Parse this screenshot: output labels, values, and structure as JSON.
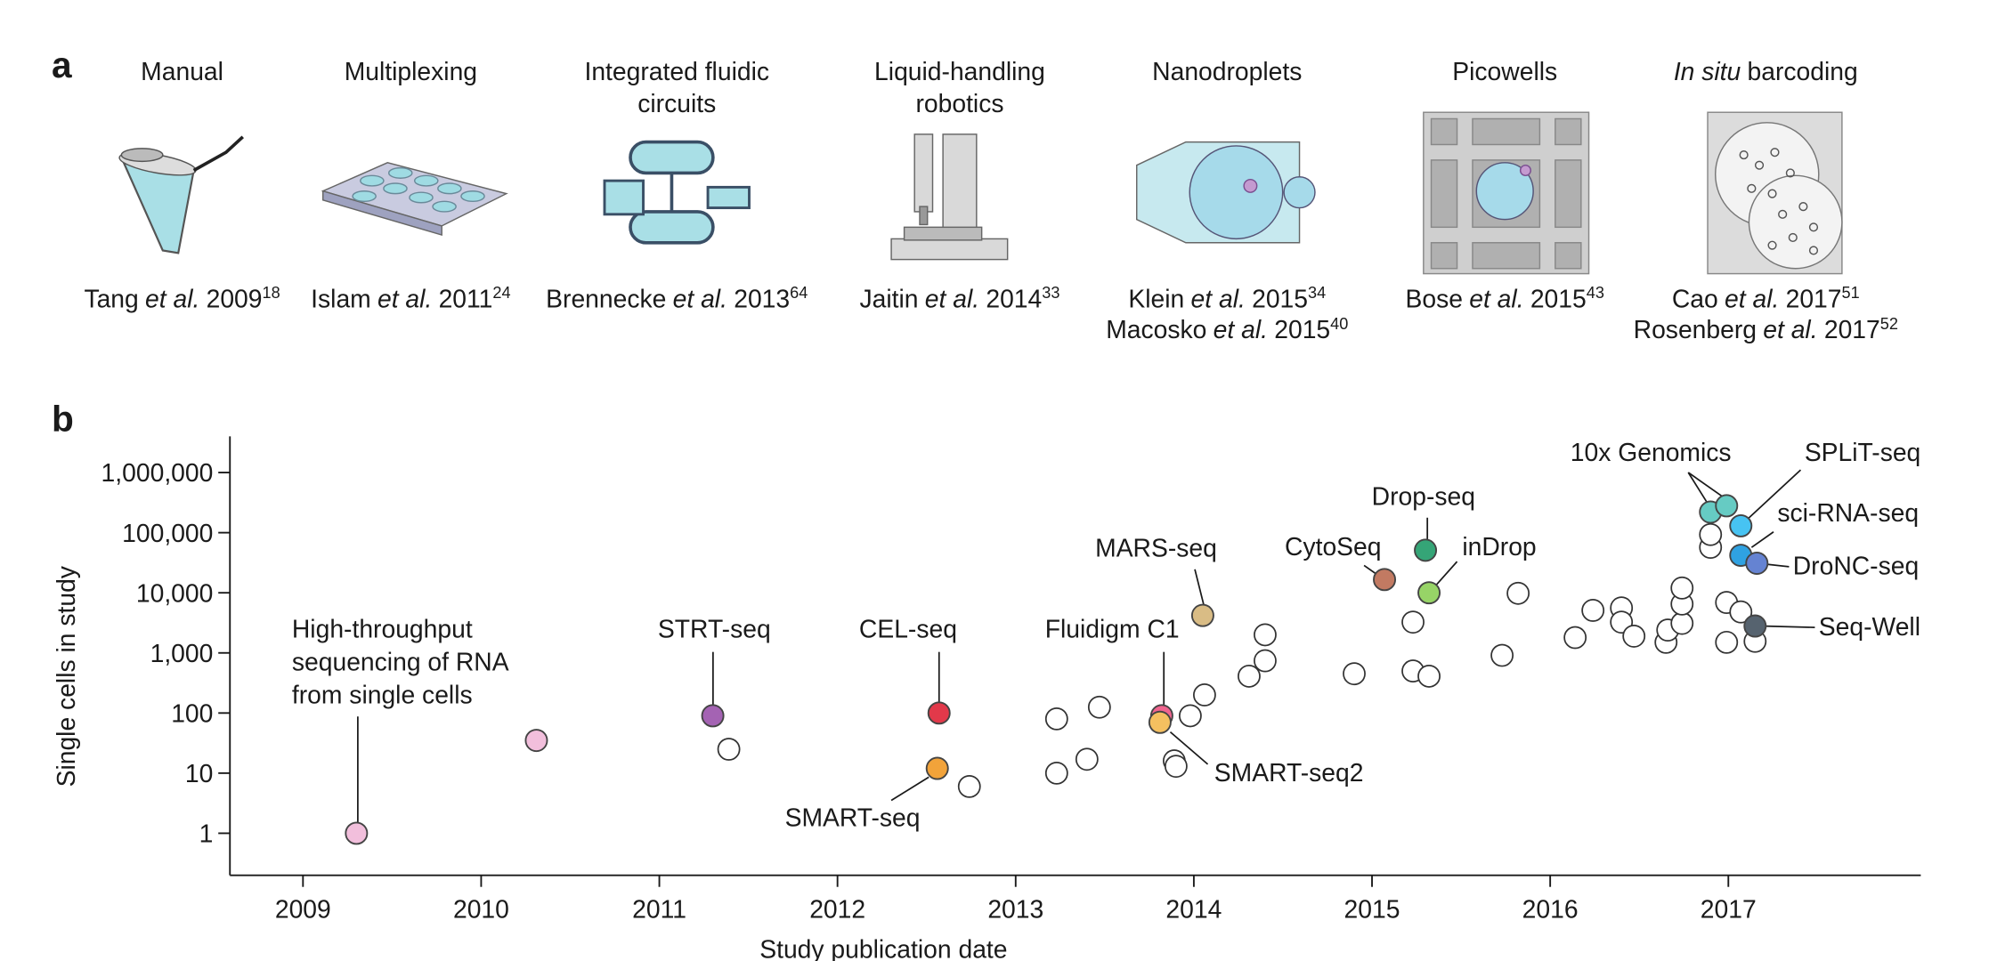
{
  "panel_a": {
    "label": "a",
    "items": [
      {
        "title": [
          "Manual"
        ],
        "refs": [
          {
            "author": "Tang",
            "etal": "et al.",
            "year": "2009",
            "ref": "18"
          }
        ]
      },
      {
        "title": [
          "Multiplexing"
        ],
        "refs": [
          {
            "author": "Islam",
            "etal": "et al.",
            "year": "2011",
            "ref": "24"
          }
        ]
      },
      {
        "title": [
          "Integrated fluidic",
          "circuits"
        ],
        "refs": [
          {
            "author": "Brennecke",
            "etal": "et al.",
            "year": "2013",
            "ref": "64"
          }
        ]
      },
      {
        "title": [
          "Liquid-handling",
          "robotics"
        ],
        "refs": [
          {
            "author": "Jaitin",
            "etal": "et al.",
            "year": "2014",
            "ref": "33"
          }
        ]
      },
      {
        "title": [
          "Nanodroplets"
        ],
        "refs": [
          {
            "author": "Klein",
            "etal": "et al.",
            "year": "2015",
            "ref": "34"
          },
          {
            "author": "Macosko",
            "etal": "et al.",
            "year": "2015",
            "ref": "40"
          }
        ]
      },
      {
        "title": [
          "Picowells"
        ],
        "refs": [
          {
            "author": "Bose",
            "etal": "et al.",
            "year": "2015",
            "ref": "43"
          }
        ]
      },
      {
        "title_italic": "In situ",
        "title": [
          "barcoding"
        ],
        "refs": [
          {
            "author": "Cao",
            "etal": "et al.",
            "year": "2017",
            "ref": "51"
          },
          {
            "author": "Rosenberg",
            "etal": "et al.",
            "year": "2017",
            "ref": "52"
          }
        ]
      }
    ]
  },
  "chart_data": {
    "type": "scatter",
    "panel_label": "b",
    "xlabel": "Study publication date",
    "ylabel": "Single cells in study",
    "log_y": true,
    "xlim": [
      2008.59,
      2018.08
    ],
    "xticks": [
      2009,
      2010,
      2011,
      2012,
      2013,
      2014,
      2015,
      2016,
      2017
    ],
    "ylim": [
      0.2,
      4000000
    ],
    "yticks": [
      1,
      10,
      100,
      {
        "value": 1000,
        "label": "1,000"
      },
      {
        "value": 10000,
        "label": "10,000"
      },
      {
        "value": 100000,
        "label": "100,000"
      },
      {
        "value": 1000000,
        "label": "1,000,000"
      }
    ],
    "series": [
      {
        "name": [
          "High-throughput",
          "sequencing of RNA",
          "from single cells"
        ],
        "color": "#f2bfdc",
        "x": [
          2009.3,
          2010.31
        ],
        "values": [
          1,
          35
        ]
      },
      {
        "name": "STRT-seq",
        "color": "#a463b3",
        "x": [
          2011.3
        ],
        "values": [
          90
        ]
      },
      {
        "name": "CEL-seq",
        "color": "#e2394a",
        "x": [
          2012.57
        ],
        "values": [
          100
        ]
      },
      {
        "name": "SMART-seq",
        "color": "#f2a33a",
        "x": [
          2012.56
        ],
        "values": [
          12
        ]
      },
      {
        "name": "Fluidigm C1",
        "color": "#f0648f",
        "x": [
          2013.82
        ],
        "values": [
          90
        ]
      },
      {
        "name": "SMART-seq2",
        "color": "#f5c060",
        "x": [
          2013.81
        ],
        "values": [
          70
        ]
      },
      {
        "name": "MARS-seq",
        "color": "#d9bc85",
        "x": [
          2014.05
        ],
        "values": [
          4200
        ]
      },
      {
        "name": "CytoSeq",
        "color": "#c27a62",
        "x": [
          2015.07
        ],
        "values": [
          16600
        ]
      },
      {
        "name": "Drop-seq",
        "color": "#35a577",
        "x": [
          2015.3
        ],
        "values": [
          51000
        ]
      },
      {
        "name": "inDrop",
        "color": "#97d467",
        "x": [
          2015.32
        ],
        "values": [
          10000
        ]
      },
      {
        "name": "10x Genomics",
        "color": "#66cbc3",
        "x": [
          2016.9,
          2016.99
        ],
        "values": [
          220000,
          280000
        ]
      },
      {
        "name": "SPLiT-seq",
        "color": "#47c3f2",
        "x": [
          2017.07
        ],
        "values": [
          130000
        ]
      },
      {
        "name": "sci-RNA-seq",
        "color": "#2fa2e2",
        "x": [
          2017.07
        ],
        "values": [
          42000
        ]
      },
      {
        "name": "DroNC-seq",
        "color": "#6583d2",
        "x": [
          2017.16
        ],
        "values": [
          31000
        ]
      },
      {
        "name": "Seq-Well",
        "color": "#56636f",
        "x": [
          2017.15
        ],
        "values": [
          2800
        ]
      },
      {
        "color": "#ffffff",
        "x": [
          2011.39,
          2012.74,
          2013.23,
          2013.23,
          2013.4,
          2013.47,
          2013.89,
          2013.9,
          2013.98,
          2014.06,
          2014.31,
          2014.4,
          2014.4,
          2014.9,
          2015.23,
          2015.23,
          2015.32,
          2015.73,
          2015.82,
          2016.14,
          2016.24,
          2016.4,
          2016.4,
          2016.47,
          2016.65,
          2016.66,
          2016.74,
          2016.74,
          2016.74,
          2016.9,
          2016.9,
          2016.99,
          2017.07,
          2016.99,
          2017.15
        ],
        "values": [
          25,
          6,
          80,
          10,
          17,
          125,
          16,
          13,
          90,
          200,
          410,
          740,
          2000,
          450,
          3250,
          500,
          410,
          910,
          9800,
          1800,
          5100,
          5600,
          3250,
          1900,
          1500,
          2400,
          3100,
          6500,
          12000,
          57000,
          93000,
          6900,
          4800,
          1500,
          1560
        ]
      }
    ]
  }
}
